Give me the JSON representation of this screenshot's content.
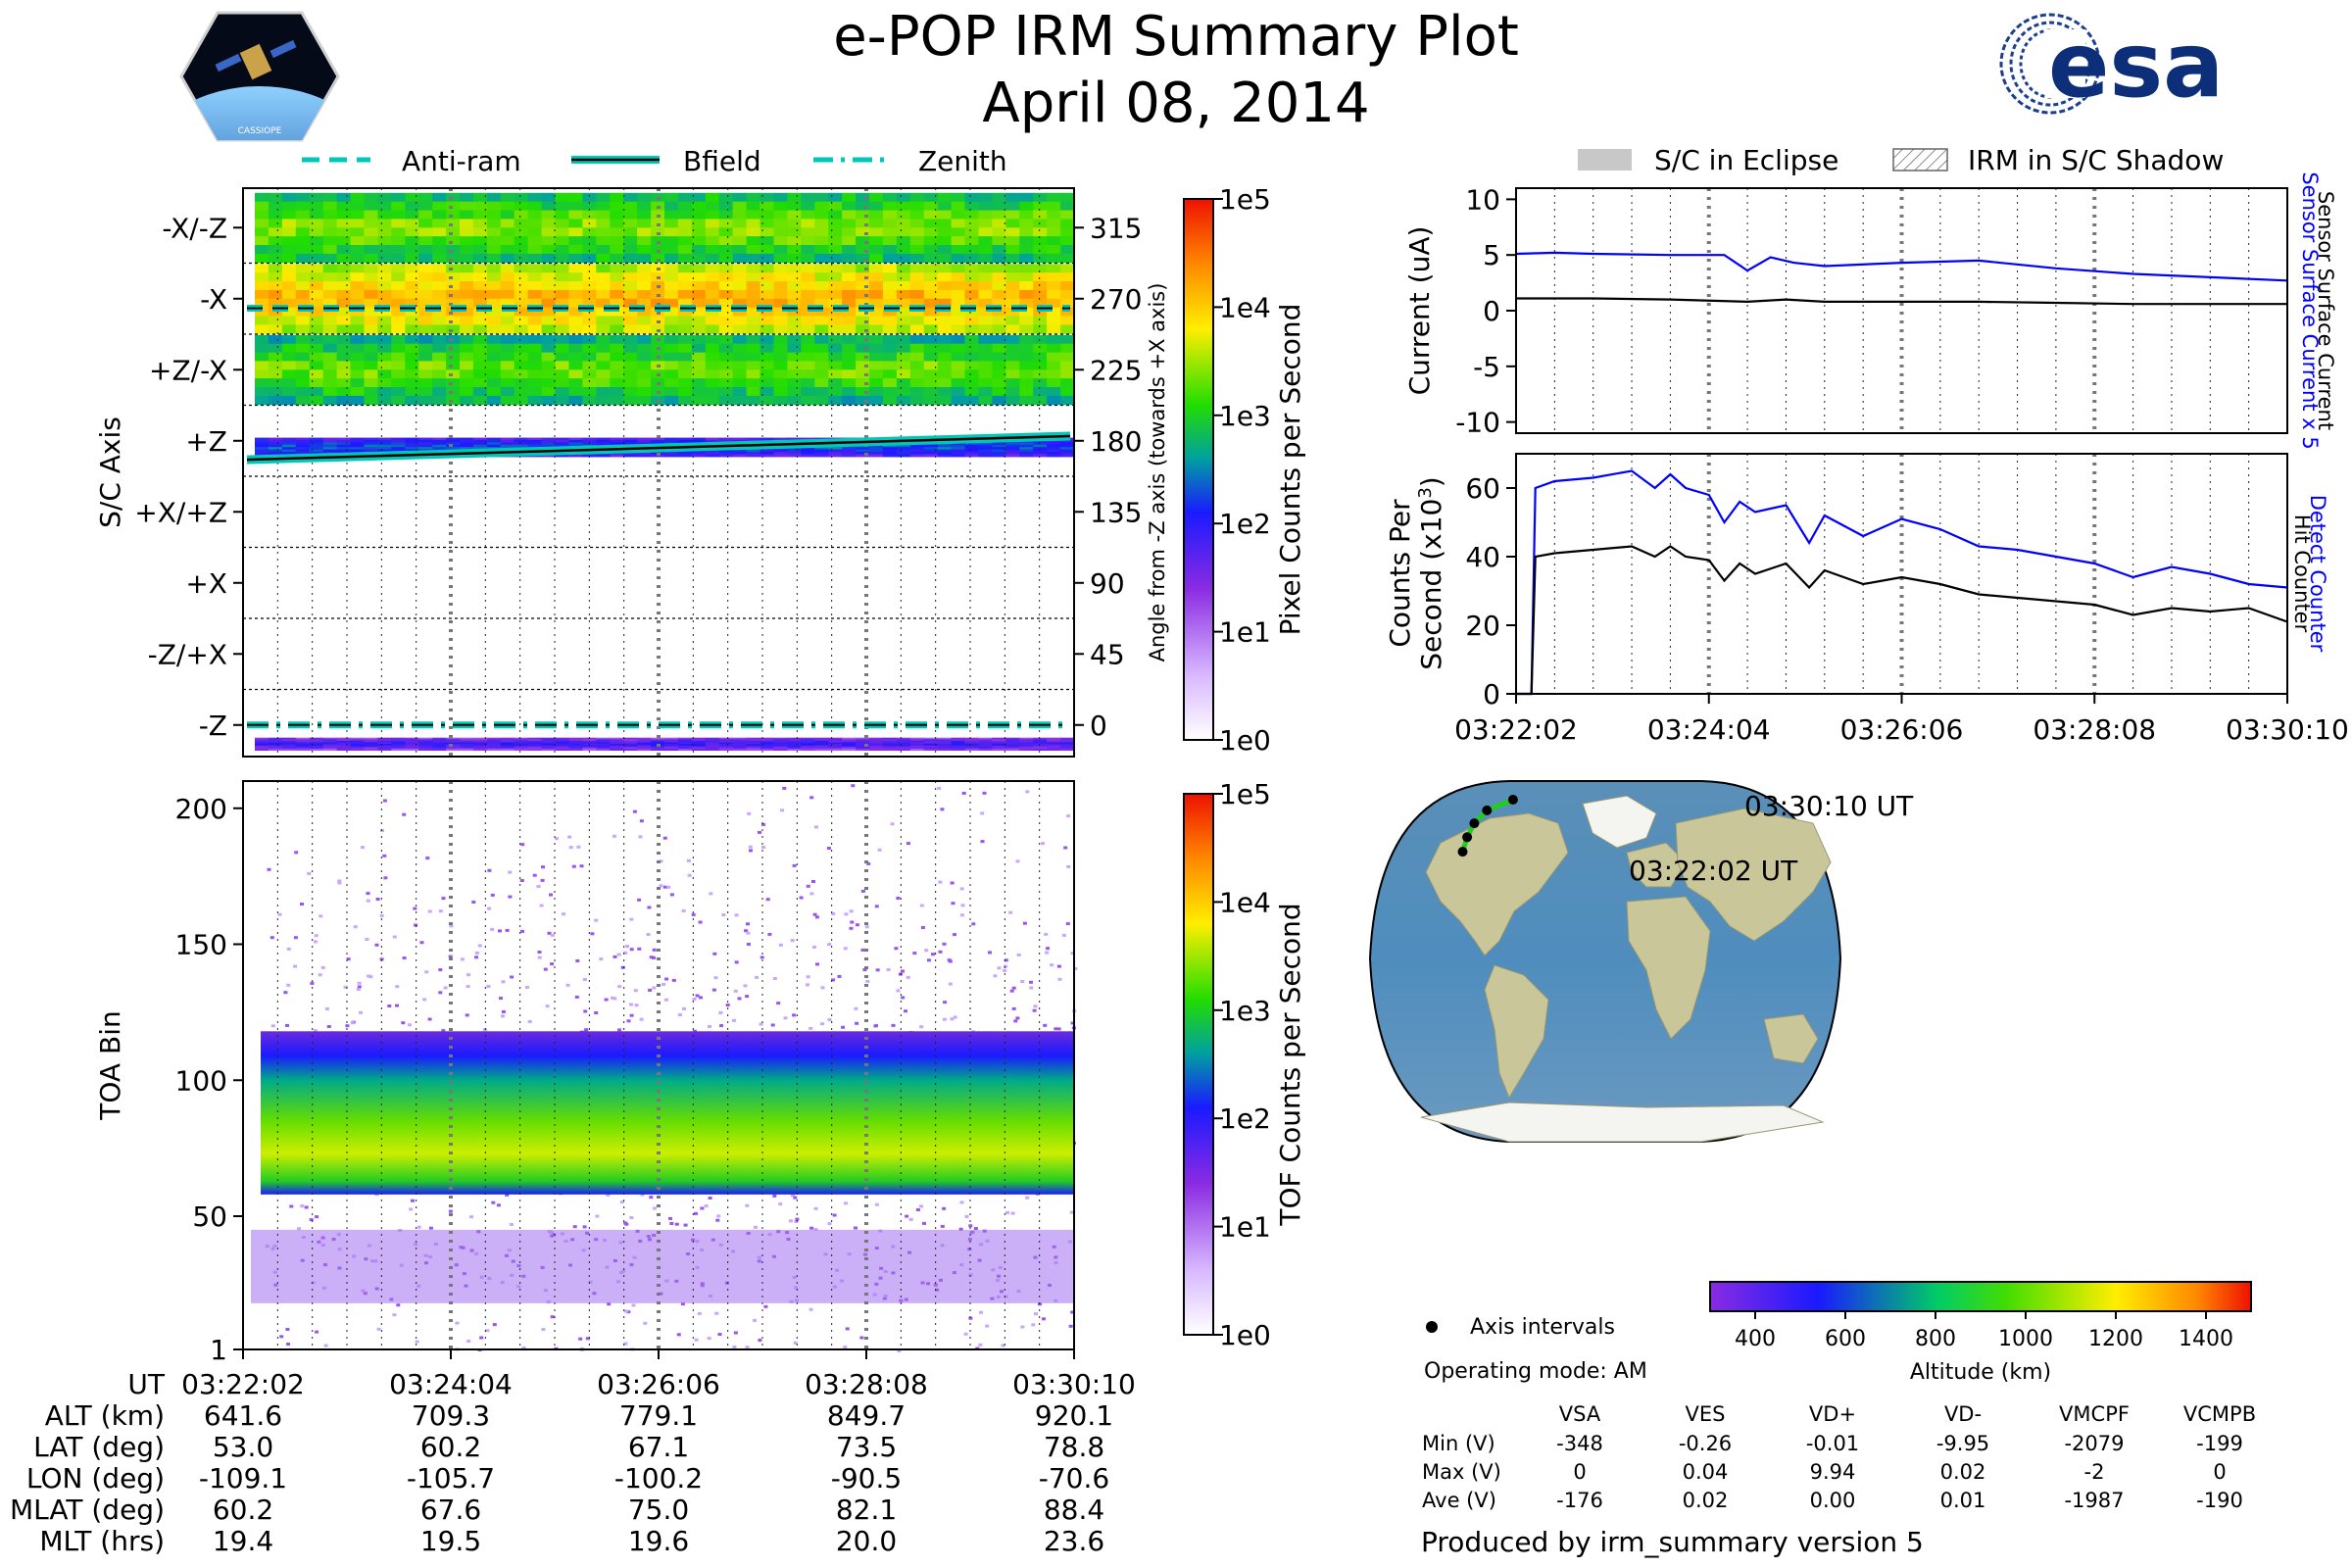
{
  "header": {
    "title": "e-POP IRM Summary Plot",
    "date": "April 08, 2014",
    "logo_left": "CASSIOPE",
    "logo_right": "esa"
  },
  "legend_top": [
    {
      "label": "Anti-ram",
      "style": "dashed"
    },
    {
      "label": "Bfield",
      "style": "solid"
    },
    {
      "label": "Zenith",
      "style": "dashdot"
    }
  ],
  "legend_right": [
    {
      "label": "S/C in Eclipse",
      "style": "grey-fill"
    },
    {
      "label": "IRM in S/C Shadow",
      "style": "hatch"
    }
  ],
  "colors": {
    "line_cyan": "#00c8b8",
    "blue": "#0000ff",
    "black": "#000000",
    "track_green": "#22cc22"
  },
  "chart_data": [
    {
      "id": "axis-spectrogram",
      "type": "heatmap",
      "ylabel": "S/C Axis",
      "ylabel_right": "Angle from -Z axis (towards +X axis)",
      "y_tick_labels": [
        "-X/-Z",
        "-X",
        "+Z/-X",
        "+Z",
        "+X/+Z",
        "+X",
        "-Z/+X",
        "-Z"
      ],
      "y_tick_angles": [
        315,
        270,
        225,
        180,
        135,
        90,
        45,
        0
      ],
      "ylim": [
        -20,
        340
      ],
      "bands": [
        {
          "center": 315,
          "half_width": 22,
          "level": 2.7
        },
        {
          "center": 270,
          "half_width": 22,
          "level": 3.4
        },
        {
          "center": 225,
          "half_width": 22,
          "level": 2.6
        },
        {
          "center": 176,
          "half_width": 6,
          "level": 1.6
        },
        {
          "center": -12,
          "half_width": 4,
          "level": 1.2
        }
      ],
      "lines": [
        {
          "name": "Anti-ram",
          "style": "dashed",
          "y_start": 264,
          "y_end": 264
        },
        {
          "name": "Bfield",
          "style": "solid",
          "y_start": 168,
          "y_end": 183
        },
        {
          "name": "Zenith",
          "style": "dashdot",
          "y_start": 0,
          "y_end": 0
        }
      ],
      "colorbar": {
        "label": "Pixel Counts per Second",
        "ticks": [
          "1e0",
          "1e1",
          "1e2",
          "1e3",
          "1e4",
          "1e5"
        ]
      }
    },
    {
      "id": "toa-spectrogram",
      "type": "heatmap",
      "ylabel": "TOA Bin",
      "y_ticks": [
        1,
        50,
        100,
        150,
        200
      ],
      "ylim": [
        1,
        210
      ],
      "main_band": {
        "low": 58,
        "high": 118,
        "peak": 75
      },
      "secondary_band": {
        "low": 18,
        "high": 45
      },
      "colorbar": {
        "label": "TOF Counts per Second",
        "ticks": [
          "1e0",
          "1e1",
          "1e2",
          "1e3",
          "1e4",
          "1e5"
        ]
      }
    },
    {
      "id": "current-plot",
      "type": "line",
      "ylabel": "Current (uA)",
      "ylim": [
        -11,
        11
      ],
      "y_ticks": [
        10,
        5,
        0,
        -5,
        -10
      ],
      "series": [
        {
          "name": "Sensor Surface Current x 5",
          "color": "#0000ff",
          "x": [
            0,
            0.05,
            0.1,
            0.2,
            0.27,
            0.3,
            0.33,
            0.36,
            0.4,
            0.5,
            0.6,
            0.7,
            0.8,
            0.9,
            1.0
          ],
          "y": [
            5.1,
            5.2,
            5.1,
            5.0,
            5.0,
            3.6,
            4.8,
            4.3,
            4.0,
            4.3,
            4.5,
            3.8,
            3.3,
            3.0,
            2.7
          ]
        },
        {
          "name": "Sensor Surface Current",
          "color": "#000000",
          "x": [
            0,
            0.1,
            0.2,
            0.3,
            0.35,
            0.4,
            0.5,
            0.6,
            0.7,
            0.8,
            0.9,
            1.0
          ],
          "y": [
            1.1,
            1.1,
            1.0,
            0.8,
            1.0,
            0.8,
            0.8,
            0.8,
            0.7,
            0.6,
            0.6,
            0.6
          ]
        }
      ]
    },
    {
      "id": "counts-plot",
      "type": "line",
      "ylabel": "Counts Per Second (x10³)",
      "ylim": [
        0,
        70
      ],
      "y_ticks": [
        0,
        20,
        40,
        60
      ],
      "xlabels": [
        "03:22:02",
        "03:24:04",
        "03:26:06",
        "03:28:08",
        "03:30:10"
      ],
      "series": [
        {
          "name": "Detect Counter",
          "color": "#0000ff",
          "x": [
            0,
            0.02,
            0.025,
            0.05,
            0.1,
            0.15,
            0.18,
            0.2,
            0.22,
            0.25,
            0.27,
            0.29,
            0.31,
            0.35,
            0.38,
            0.4,
            0.45,
            0.5,
            0.55,
            0.6,
            0.65,
            0.7,
            0.75,
            0.8,
            0.85,
            0.9,
            0.95,
            1.0
          ],
          "y": [
            0,
            0,
            60,
            62,
            63,
            65,
            60,
            64,
            60,
            58,
            50,
            56,
            53,
            55,
            44,
            52,
            46,
            51,
            48,
            43,
            42,
            40,
            38,
            34,
            37,
            35,
            32,
            31
          ]
        },
        {
          "name": "Hit Counter",
          "color": "#000000",
          "x": [
            0,
            0.02,
            0.025,
            0.05,
            0.1,
            0.15,
            0.18,
            0.2,
            0.22,
            0.25,
            0.27,
            0.29,
            0.31,
            0.35,
            0.38,
            0.4,
            0.45,
            0.5,
            0.55,
            0.6,
            0.65,
            0.7,
            0.75,
            0.8,
            0.85,
            0.9,
            0.95,
            1.0
          ],
          "y": [
            0,
            0,
            40,
            41,
            42,
            43,
            40,
            43,
            40,
            39,
            33,
            38,
            35,
            38,
            31,
            36,
            32,
            34,
            32,
            29,
            28,
            27,
            26,
            23,
            25,
            24,
            25,
            21
          ]
        }
      ]
    }
  ],
  "right_labels": {
    "current_blue": "Sensor Surface Current x 5",
    "current_black": "Sensor Surface Current",
    "counts_blue": "Detect Counter",
    "counts_black": "Hit Counter"
  },
  "map": {
    "start_label": "03:22:02 UT",
    "end_label": "03:30:10 UT",
    "track": [
      [
        -109.1,
        53.0
      ],
      [
        -105.7,
        60.2
      ],
      [
        -100.2,
        67.1
      ],
      [
        -90.5,
        73.5
      ],
      [
        -70.6,
        78.8
      ]
    ],
    "altitude_colorbar": {
      "label": "Altitude (km)",
      "ticks": [
        400,
        600,
        800,
        1000,
        1200,
        1400
      ],
      "range": [
        300,
        1500
      ]
    },
    "axis_intervals_label": "Axis intervals",
    "operating_mode": "Operating mode: AM"
  },
  "ephemeris": {
    "rows": [
      {
        "label": "UT",
        "values": [
          "03:22:02",
          "03:24:04",
          "03:26:06",
          "03:28:08",
          "03:30:10"
        ]
      },
      {
        "label": "ALT (km)",
        "values": [
          "641.6",
          "709.3",
          "779.1",
          "849.7",
          "920.1"
        ]
      },
      {
        "label": "LAT (deg)",
        "values": [
          "53.0",
          "60.2",
          "67.1",
          "73.5",
          "78.8"
        ]
      },
      {
        "label": "LON (deg)",
        "values": [
          "-109.1",
          "-105.7",
          "-100.2",
          "-90.5",
          "-70.6"
        ]
      },
      {
        "label": "MLAT (deg)",
        "values": [
          "60.2",
          "67.6",
          "75.0",
          "82.1",
          "88.4"
        ]
      },
      {
        "label": "MLT (hrs)",
        "values": [
          "19.4",
          "19.5",
          "19.6",
          "20.0",
          "23.6"
        ]
      }
    ]
  },
  "voltage_table": {
    "columns": [
      "VSA",
      "VES",
      "VD+",
      "VD-",
      "VMCPF",
      "VCMPB"
    ],
    "rows": [
      {
        "label": "Min (V)",
        "values": [
          "-348",
          "-0.26",
          "-0.01",
          "-9.95",
          "-2079",
          "-199"
        ]
      },
      {
        "label": "Max (V)",
        "values": [
          "0",
          "0.04",
          "9.94",
          "0.02",
          "-2",
          "0"
        ]
      },
      {
        "label": "Ave (V)",
        "values": [
          "-176",
          "0.02",
          "0.00",
          "0.01",
          "-1987",
          "-190"
        ]
      }
    ]
  },
  "footer": "Produced by irm_summary version 5"
}
